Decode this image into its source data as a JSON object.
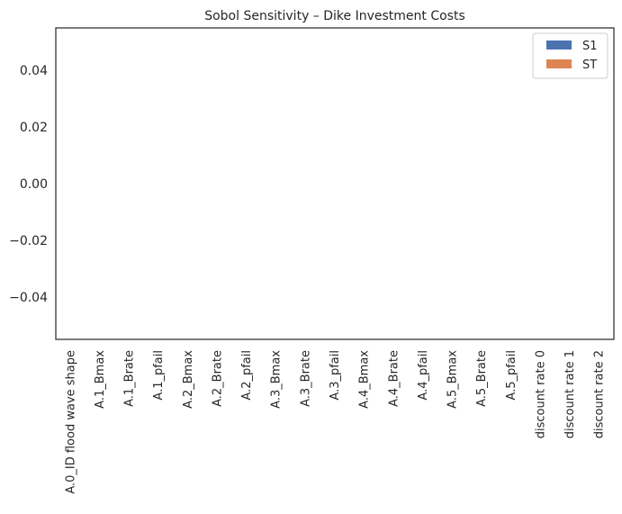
{
  "chart_data": {
    "type": "bar",
    "title": "Sobol Sensitivity – Dike Investment Costs",
    "xlabel": "",
    "ylabel": "",
    "categories": [
      "A.0_ID flood wave shape",
      "A.1_Bmax",
      "A.1_Brate",
      "A.1_pfail",
      "A.2_Bmax",
      "A.2_Brate",
      "A.2_pfail",
      "A.3_Bmax",
      "A.3_Brate",
      "A.3_pfail",
      "A.4_Bmax",
      "A.4_Brate",
      "A.4_pfail",
      "A.5_Bmax",
      "A.5_Brate",
      "A.5_pfail",
      "discount rate 0",
      "discount rate 1",
      "discount rate 2"
    ],
    "series": [
      {
        "name": "S1",
        "color": "#4c72b0",
        "values": [
          0,
          0,
          0,
          0,
          0,
          0,
          0,
          0,
          0,
          0,
          0,
          0,
          0,
          0,
          0,
          0,
          0,
          0,
          0
        ]
      },
      {
        "name": "ST",
        "color": "#dd8452",
        "values": [
          0,
          0,
          0,
          0,
          0,
          0,
          0,
          0,
          0,
          0,
          0,
          0,
          0,
          0,
          0,
          0,
          0,
          0,
          0
        ]
      }
    ],
    "ylim": [
      -0.055,
      0.055
    ],
    "yticks": [
      -0.04,
      -0.02,
      0.0,
      0.02,
      0.04
    ],
    "ytick_labels": [
      "−0.04",
      "−0.02",
      "0.00",
      "0.02",
      "0.04"
    ],
    "grid": false,
    "legend_position": "top-right"
  }
}
